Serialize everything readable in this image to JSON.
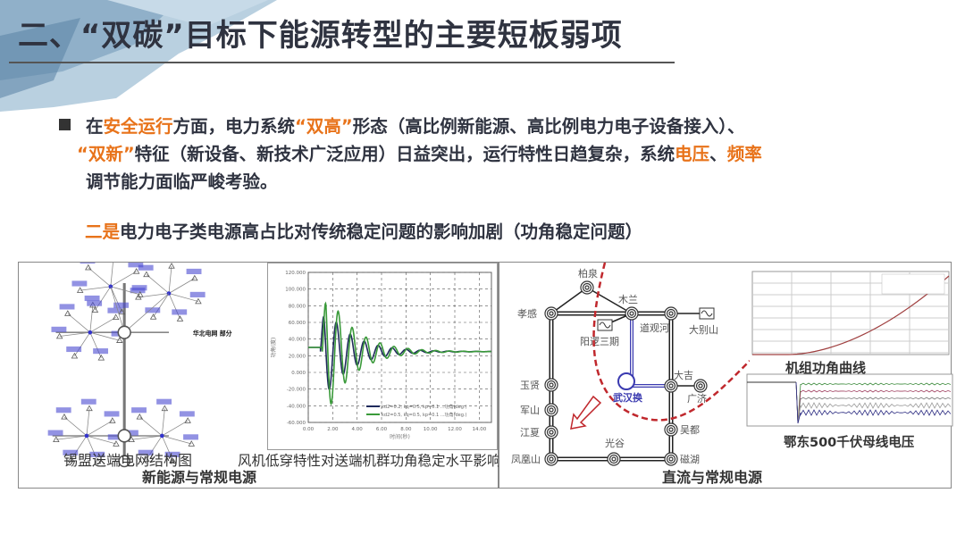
{
  "title": "二、“双碳”目标下能源转型的主要短板弱项",
  "paragraph": {
    "l1": [
      "在",
      "安全运行",
      "方面，电力系统",
      "“双高”",
      "形态（高比例新能源、高比例电力电子设备接入）、"
    ],
    "l2": [
      "“双新”",
      "特征（新设备、新技术广泛应用）日益突出，运行特性日趋复杂，系统",
      "电压",
      "、",
      "频率"
    ],
    "l3": "调节能力面临严峻考验。"
  },
  "subheading": [
    "二是",
    "电力电子类电源高占比对传统稳定问题的影响加剧（功角稳定问题）"
  ],
  "accent_color": "#e8731a",
  "left_panel": {
    "caption": "新能源与常规电源",
    "network_caption": "锡盟送端电网结构图",
    "network_label": "华北电网 部分",
    "chart_caption": "风机低穿特性对送端机群功角稳定水平影响",
    "chart": {
      "y_ticks": [
        "120.000",
        "100.000",
        "80.000",
        "60.000",
        "40.000",
        "20.000",
        "0.000",
        "-20.000",
        "-40.000",
        "-60.000"
      ],
      "x_ticks": [
        "0.00",
        "2.00",
        "4.00",
        "6.00",
        "8.00",
        "10.00",
        "12.00",
        "14.00"
      ],
      "ylabel": "功角(度)",
      "xlabel": "时间(秒)",
      "legend": [
        "kd2=0.2, kq=0.5, kp=0.1 ...功角(deg.)",
        "kd2=0.5, kq=0.5, kp=0.1 ...功角(deg.)"
      ],
      "colors": [
        "#1f2a5c",
        "#3a9a3a"
      ]
    }
  },
  "right_panel": {
    "caption": "直流与常规电源",
    "stations": [
      "柏泉",
      "木兰",
      "孝感",
      "道观河",
      "大别山",
      "阳逻三期",
      "玉贤",
      "军山",
      "江夏",
      "凤凰山",
      "光谷",
      "磁湖",
      "吴都",
      "大吉",
      "广济",
      "武汉换"
    ],
    "angle_caption": "机组功角曲线",
    "voltage_caption": "鄂东500千伏母线电压"
  }
}
